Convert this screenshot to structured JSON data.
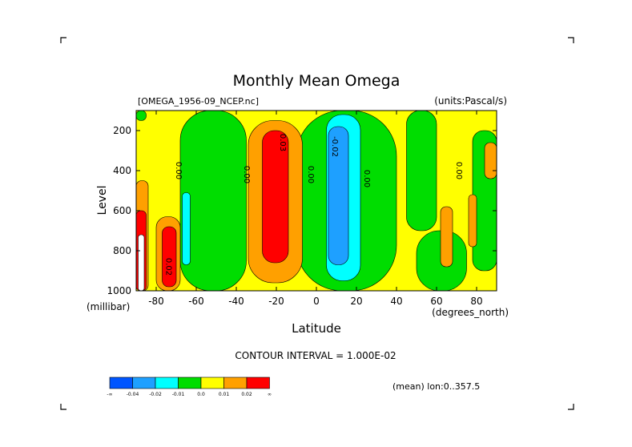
{
  "chart_data": {
    "type": "heatmap",
    "title": "Monthly Mean Omega",
    "dataset_label": "[OMEGA_1956-09_NCEP.nc]",
    "units_label": "(units:Pascal/s)",
    "xlabel": "Latitude",
    "ylabel": "Level",
    "xunits": "(degrees_north)",
    "yunits": "(millibar)",
    "xlim": [
      -90,
      90
    ],
    "ylim": [
      1000,
      100
    ],
    "xticks": [
      -80,
      -60,
      -40,
      -20,
      0,
      20,
      40,
      60,
      80
    ],
    "yticks": [
      200,
      400,
      600,
      800,
      1000
    ],
    "contour_interval": "CONTOUR INTERVAL = 1.000E-02",
    "mean_note": "(mean) lon:0..357.5",
    "contour_labels": [
      {
        "text": "0.00",
        "x": -70,
        "y": 400
      },
      {
        "text": "0.00",
        "x": -36,
        "y": 420
      },
      {
        "text": "0.03",
        "x": -18,
        "y": 260
      },
      {
        "text": "0.00",
        "x": -4,
        "y": 420
      },
      {
        "text": "-0.02",
        "x": 8,
        "y": 280
      },
      {
        "text": "0.00",
        "x": 24,
        "y": 440
      },
      {
        "text": "0.00",
        "x": 70,
        "y": 400
      },
      {
        "text": "0.02",
        "x": -75,
        "y": 880
      }
    ],
    "colorbar": {
      "colors": [
        "#0055ff",
        "#1ea0ff",
        "#00ffff",
        "#00dd00",
        "#ffff00",
        "#ffa000",
        "#ff0000"
      ],
      "labels": [
        "-∞",
        "-0.04",
        "-0.02",
        "-0.01",
        "0.0",
        "0.01",
        "0.02",
        "∞"
      ]
    },
    "regions": [
      {
        "color": "#ffff00",
        "x": [
          -90,
          90
        ],
        "y": [
          100,
          1000
        ]
      },
      {
        "color": "#00dd00",
        "x": [
          -90,
          -85
        ],
        "y": [
          100,
          150
        ]
      },
      {
        "color": "#00dd00",
        "x": [
          -68,
          -35
        ],
        "y": [
          100,
          1000
        ]
      },
      {
        "color": "#00dd00",
        "x": [
          -10,
          40
        ],
        "y": [
          100,
          1000
        ]
      },
      {
        "color": "#00dd00",
        "x": [
          45,
          60
        ],
        "y": [
          100,
          700
        ]
      },
      {
        "color": "#00dd00",
        "x": [
          50,
          75
        ],
        "y": [
          700,
          1000
        ]
      },
      {
        "color": "#00dd00",
        "x": [
          78,
          90
        ],
        "y": [
          200,
          900
        ]
      },
      {
        "color": "#ffa000",
        "x": [
          -90,
          -84
        ],
        "y": [
          450,
          1000
        ]
      },
      {
        "color": "#ff0000",
        "x": [
          -90,
          -85
        ],
        "y": [
          600,
          1000
        ]
      },
      {
        "color": "#ffa000",
        "x": [
          -80,
          -68
        ],
        "y": [
          630,
          1000
        ]
      },
      {
        "color": "#ff0000",
        "x": [
          -77,
          -70
        ],
        "y": [
          680,
          980
        ]
      },
      {
        "color": "#00ffff",
        "x": [
          -67,
          -63
        ],
        "y": [
          510,
          870
        ]
      },
      {
        "color": "#ffa000",
        "x": [
          -34,
          -7
        ],
        "y": [
          150,
          960
        ]
      },
      {
        "color": "#ff0000",
        "x": [
          -27,
          -14
        ],
        "y": [
          200,
          860
        ]
      },
      {
        "color": "#00ffff",
        "x": [
          5,
          22
        ],
        "y": [
          120,
          950
        ]
      },
      {
        "color": "#1ea0ff",
        "x": [
          6,
          16
        ],
        "y": [
          180,
          870
        ]
      },
      {
        "color": "#ffa000",
        "x": [
          62,
          68
        ],
        "y": [
          580,
          880
        ]
      },
      {
        "color": "#ffa000",
        "x": [
          76,
          80
        ],
        "y": [
          520,
          780
        ]
      },
      {
        "color": "#ffa000",
        "x": [
          84,
          90
        ],
        "y": [
          260,
          440
        ]
      },
      {
        "color": "#ffffff",
        "x": [
          -89,
          -86
        ],
        "y": [
          720,
          1000
        ]
      }
    ]
  }
}
